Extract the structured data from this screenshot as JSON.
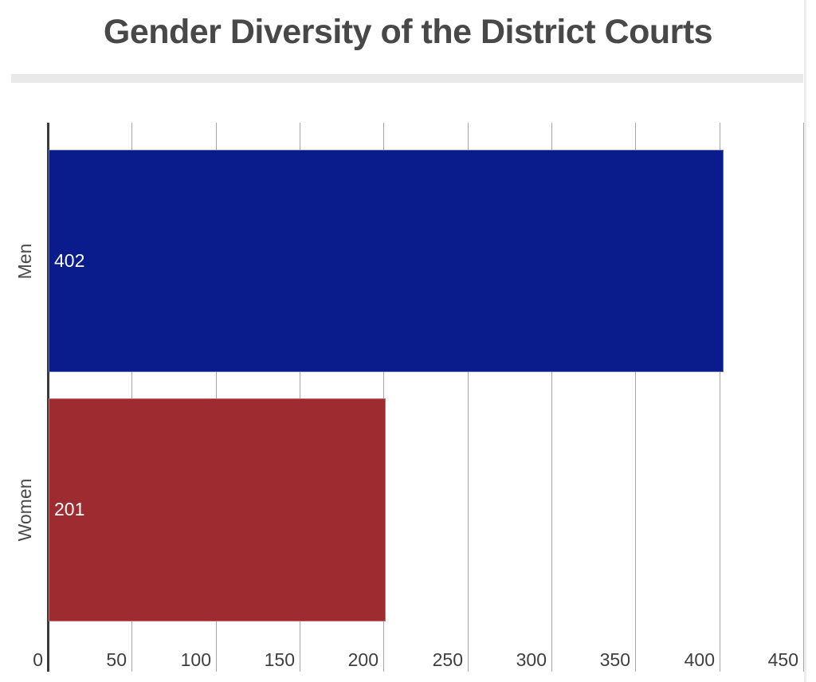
{
  "title": "Gender Diversity of the District Courts",
  "chart_data": {
    "type": "bar",
    "orientation": "horizontal",
    "title": "Gender Diversity of the District Courts",
    "categories": [
      "Men",
      "Women"
    ],
    "values": [
      402,
      201
    ],
    "value_labels": [
      "402",
      "201"
    ],
    "bar_colors": [
      "#0a1b8c",
      "#9d2b30"
    ],
    "xlabel": "",
    "ylabel": "",
    "xlim": [
      0,
      450
    ],
    "x_ticks": [
      0,
      50,
      100,
      150,
      200,
      250,
      300,
      350,
      400,
      450
    ],
    "grid": true,
    "legend": "none",
    "value_label_position": "inside-start",
    "value_label_color": "#ffffff"
  },
  "colors": {
    "background": "#ffffff",
    "title_text": "#484848",
    "divider": "#e9e9e9",
    "gridline": "#a6a6a6",
    "axis_line": "#3a3a3a",
    "tick_text": "#3f3f3f",
    "category_text": "#4a4a4a",
    "scroll_strip": "#ededed"
  }
}
